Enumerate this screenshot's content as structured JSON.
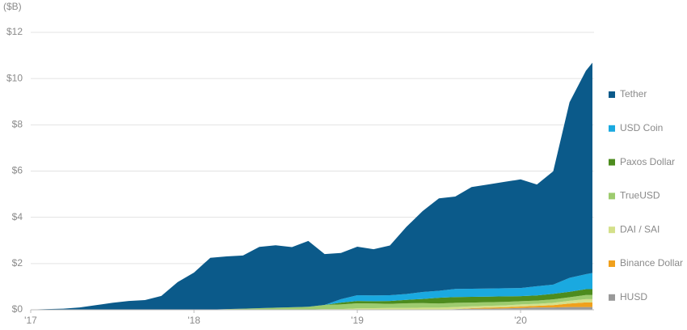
{
  "chart_data": {
    "type": "stacked-area",
    "y_unit_label": "($B)",
    "x": [
      2017.0,
      2017.1,
      2017.2,
      2017.3,
      2017.4,
      2017.5,
      2017.6,
      2017.7,
      2017.8,
      2017.9,
      2018.0,
      2018.1,
      2018.2,
      2018.3,
      2018.4,
      2018.5,
      2018.6,
      2018.7,
      2018.8,
      2018.9,
      2019.0,
      2019.1,
      2019.2,
      2019.3,
      2019.4,
      2019.5,
      2019.6,
      2019.7,
      2019.8,
      2019.9,
      2020.0,
      2020.1,
      2020.2,
      2020.3,
      2020.4,
      2020.44
    ],
    "xlim": [
      2017,
      2020.45
    ],
    "xticks": [
      {
        "value": 2017,
        "label": "'17"
      },
      {
        "value": 2018,
        "label": "'18"
      },
      {
        "value": 2019,
        "label": "'19"
      },
      {
        "value": 2020,
        "label": "'20"
      }
    ],
    "ylim": [
      0,
      12
    ],
    "yticks": [
      {
        "value": 0,
        "label": "$0"
      },
      {
        "value": 2,
        "label": "$2"
      },
      {
        "value": 4,
        "label": "$4"
      },
      {
        "value": 6,
        "label": "$6"
      },
      {
        "value": 8,
        "label": "$8"
      },
      {
        "value": 10,
        "label": "$10"
      },
      {
        "value": 12,
        "label": "$12"
      }
    ],
    "grid": true,
    "legend": "right",
    "series": [
      {
        "name": "Tether",
        "color": "#0b5a8a",
        "values": [
          0.01,
          0.03,
          0.05,
          0.1,
          0.2,
          0.3,
          0.38,
          0.42,
          0.6,
          1.2,
          1.6,
          2.24,
          2.28,
          2.3,
          2.65,
          2.7,
          2.6,
          2.85,
          2.2,
          2.0,
          2.1,
          2.0,
          2.15,
          2.9,
          3.5,
          4.0,
          4.0,
          4.4,
          4.5,
          4.6,
          4.7,
          4.4,
          4.9,
          7.6,
          8.8,
          9.1
        ]
      },
      {
        "name": "USD Coin",
        "color": "#1aa9e0",
        "values": [
          0,
          0,
          0,
          0,
          0,
          0,
          0,
          0,
          0,
          0,
          0,
          0,
          0,
          0,
          0,
          0,
          0,
          0,
          0,
          0.15,
          0.25,
          0.25,
          0.25,
          0.25,
          0.3,
          0.3,
          0.35,
          0.35,
          0.35,
          0.35,
          0.35,
          0.4,
          0.4,
          0.6,
          0.65,
          0.7
        ]
      },
      {
        "name": "Paxos Dollar",
        "color": "#4d8c1e",
        "values": [
          0,
          0,
          0,
          0,
          0,
          0,
          0,
          0,
          0,
          0,
          0,
          0,
          0,
          0,
          0,
          0,
          0,
          0,
          0,
          0.08,
          0.1,
          0.1,
          0.12,
          0.15,
          0.18,
          0.25,
          0.25,
          0.25,
          0.24,
          0.24,
          0.22,
          0.22,
          0.24,
          0.24,
          0.25,
          0.25
        ]
      },
      {
        "name": "TrueUSD",
        "color": "#9dcb6e",
        "values": [
          0,
          0,
          0,
          0,
          0,
          0,
          0,
          0,
          0,
          0,
          0,
          0,
          0.02,
          0.04,
          0.06,
          0.08,
          0.1,
          0.12,
          0.18,
          0.2,
          0.22,
          0.2,
          0.18,
          0.2,
          0.2,
          0.18,
          0.18,
          0.16,
          0.16,
          0.15,
          0.14,
          0.14,
          0.15,
          0.15,
          0.18,
          0.18
        ]
      },
      {
        "name": "DAI / SAI",
        "color": "#d4e08a",
        "values": [
          0,
          0,
          0,
          0,
          0,
          0,
          0,
          0,
          0,
          0,
          0.01,
          0.01,
          0.01,
          0.01,
          0.01,
          0.01,
          0.01,
          0.01,
          0.03,
          0.03,
          0.06,
          0.07,
          0.08,
          0.08,
          0.09,
          0.09,
          0.09,
          0.08,
          0.08,
          0.08,
          0.09,
          0.09,
          0.1,
          0.12,
          0.14,
          0.14
        ]
      },
      {
        "name": "Binance Dollar",
        "color": "#f0a01c",
        "values": [
          0,
          0,
          0,
          0,
          0,
          0,
          0,
          0,
          0,
          0,
          0,
          0,
          0,
          0,
          0,
          0,
          0,
          0,
          0,
          0,
          0,
          0,
          0,
          0,
          0,
          0,
          0,
          0.02,
          0.04,
          0.05,
          0.06,
          0.07,
          0.1,
          0.15,
          0.2,
          0.2
        ]
      },
      {
        "name": "HUSD",
        "color": "#999999",
        "values": [
          0,
          0,
          0,
          0,
          0,
          0,
          0,
          0,
          0,
          0,
          0,
          0,
          0,
          0,
          0,
          0,
          0,
          0,
          0,
          0,
          0,
          0,
          0,
          0,
          0,
          0,
          0.03,
          0.05,
          0.05,
          0.06,
          0.08,
          0.1,
          0.1,
          0.12,
          0.12,
          0.12
        ]
      }
    ]
  }
}
